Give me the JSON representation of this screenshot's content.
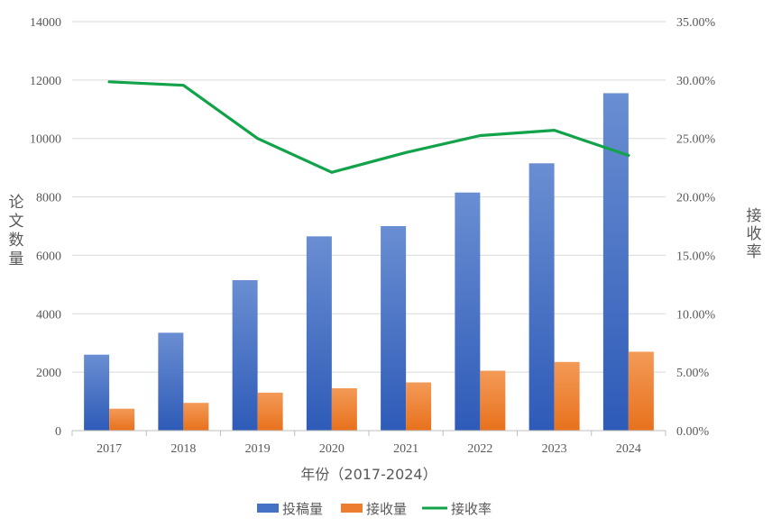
{
  "chart_data": {
    "type": "bar",
    "categories": [
      "2017",
      "2018",
      "2019",
      "2020",
      "2021",
      "2022",
      "2023",
      "2024"
    ],
    "series": [
      {
        "name": "投稿量",
        "kind": "bar",
        "axis": "left",
        "color": "#4472C4",
        "values": [
          2600,
          3350,
          5150,
          6650,
          7000,
          8150,
          9150,
          11550
        ]
      },
      {
        "name": "接收量",
        "kind": "bar",
        "axis": "left",
        "color": "#ED7D31",
        "values": [
          750,
          950,
          1300,
          1450,
          1650,
          2050,
          2350,
          2700
        ]
      },
      {
        "name": "接收率",
        "kind": "line",
        "axis": "right",
        "color": "#12A34A",
        "values": [
          0.2985,
          0.2955,
          0.25,
          0.221,
          0.238,
          0.2525,
          0.257,
          0.2355
        ]
      }
    ],
    "xlabel": "年份（2017-2024）",
    "ylabel": "论文数量",
    "ylabel_right": "接收率",
    "ylim": [
      0,
      14000
    ],
    "y_ticks": [
      "0",
      "2000",
      "4000",
      "6000",
      "8000",
      "10000",
      "12000",
      "14000"
    ],
    "ylim_right": [
      0,
      0.35
    ],
    "y_right_ticks": [
      "0.00%",
      "5.00%",
      "10.00%",
      "15.00%",
      "20.00%",
      "25.00%",
      "30.00%",
      "35.00%"
    ],
    "grid": true,
    "legend_position": "bottom-center"
  }
}
